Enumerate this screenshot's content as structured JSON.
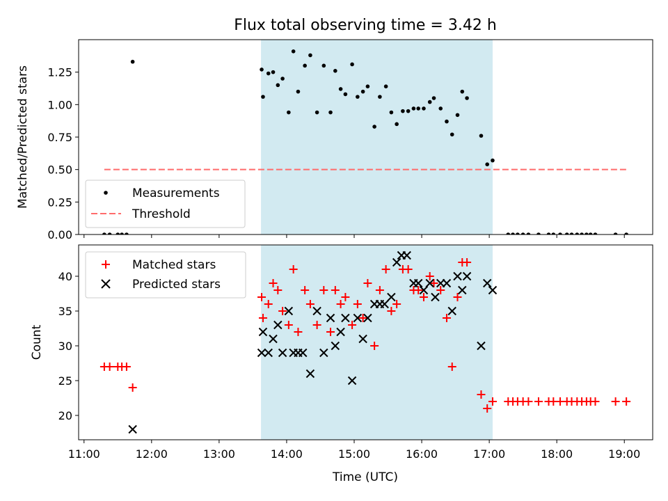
{
  "chart_data": [
    {
      "type": "scatter",
      "title": "Flux total observing time = 3.42 h",
      "xlabel": "",
      "ylabel": "Matched/Predicted stars",
      "xlim": [
        10.92,
        19.42
      ],
      "ylim": [
        0,
        1.5
      ],
      "x_ticks": [
        11,
        12,
        13,
        14,
        15,
        16,
        17,
        18,
        19
      ],
      "y_ticks": [
        0,
        0.25,
        0.5,
        0.75,
        1.0,
        1.25
      ],
      "y_tick_labels": [
        "0.00",
        "0.25",
        "0.50",
        "0.75",
        "1.00",
        "1.25"
      ],
      "shaded_span": [
        13.62,
        17.05
      ],
      "shade_color": "#add8e6",
      "threshold": {
        "name": "Threshold",
        "y": 0.5,
        "x_range": [
          11.3,
          19.05
        ],
        "color": "#ff6b6b"
      },
      "legend_position": "lower-left",
      "series": [
        {
          "name": "Measurements",
          "color": "#000000",
          "x": [
            11.3,
            11.38,
            11.5,
            11.56,
            11.63,
            11.72,
            13.63,
            13.65,
            13.73,
            13.8,
            13.87,
            13.94,
            14.03,
            14.1,
            14.17,
            14.27,
            14.35,
            14.45,
            14.55,
            14.65,
            14.72,
            14.8,
            14.87,
            14.97,
            15.05,
            15.13,
            15.2,
            15.3,
            15.38,
            15.47,
            15.55,
            15.63,
            15.72,
            15.8,
            15.88,
            15.95,
            16.03,
            16.12,
            16.18,
            16.28,
            16.37,
            16.45,
            16.53,
            16.6,
            16.67,
            16.88,
            16.97,
            17.05,
            17.28,
            17.35,
            17.42,
            17.5,
            17.58,
            17.73,
            17.88,
            17.95,
            18.05,
            18.15,
            18.22,
            18.3,
            18.37,
            18.44,
            18.5,
            18.57,
            18.87,
            19.03
          ],
          "y": [
            0,
            0,
            0,
            0,
            0,
            1.33,
            1.27,
            1.06,
            1.24,
            1.25,
            1.15,
            1.2,
            0.94,
            1.41,
            1.1,
            1.3,
            1.38,
            0.94,
            1.3,
            0.94,
            1.26,
            1.12,
            1.08,
            1.31,
            1.06,
            1.1,
            1.14,
            0.83,
            1.06,
            1.14,
            0.94,
            0.85,
            0.95,
            0.95,
            0.97,
            0.97,
            0.97,
            1.02,
            1.05,
            0.97,
            0.87,
            0.77,
            0.92,
            1.1,
            1.05,
            0.76,
            0.54,
            0.57,
            0,
            0,
            0,
            0,
            0,
            0,
            0,
            0,
            0,
            0,
            0,
            0,
            0,
            0,
            0,
            0,
            0,
            0
          ]
        }
      ]
    },
    {
      "type": "scatter",
      "title": "",
      "xlabel": "Time (UTC)",
      "ylabel": "Count",
      "xlim": [
        10.92,
        19.42
      ],
      "ylim": [
        16.5,
        44.5
      ],
      "x_ticks": [
        11,
        12,
        13,
        14,
        15,
        16,
        17,
        18,
        19
      ],
      "x_tick_labels": [
        "11:00",
        "12:00",
        "13:00",
        "14:00",
        "15:00",
        "16:00",
        "17:00",
        "18:00",
        "19:00"
      ],
      "y_ticks": [
        20,
        25,
        30,
        35,
        40
      ],
      "y_tick_labels": [
        "20",
        "25",
        "30",
        "35",
        "40"
      ],
      "shaded_span": [
        13.62,
        17.05
      ],
      "shade_color": "#add8e6",
      "legend_position": "upper-left",
      "series": [
        {
          "name": "Matched stars",
          "marker": "plus",
          "color": "#ff0000",
          "x": [
            11.3,
            11.38,
            11.5,
            11.56,
            11.63,
            11.72,
            13.63,
            13.65,
            13.73,
            13.8,
            13.87,
            13.94,
            14.03,
            14.1,
            14.17,
            14.27,
            14.35,
            14.45,
            14.55,
            14.65,
            14.72,
            14.8,
            14.87,
            14.97,
            15.05,
            15.13,
            15.2,
            15.3,
            15.38,
            15.47,
            15.55,
            15.63,
            15.72,
            15.8,
            15.88,
            15.95,
            16.03,
            16.12,
            16.18,
            16.28,
            16.37,
            16.45,
            16.53,
            16.6,
            16.67,
            16.88,
            16.97,
            17.05,
            17.28,
            17.35,
            17.42,
            17.5,
            17.58,
            17.73,
            17.88,
            17.95,
            18.05,
            18.15,
            18.22,
            18.3,
            18.37,
            18.44,
            18.5,
            18.57,
            18.87,
            19.03
          ],
          "y": [
            27,
            27,
            27,
            27,
            27,
            24,
            37,
            34,
            36,
            39,
            38,
            35,
            33,
            41,
            32,
            38,
            36,
            33,
            38,
            32,
            38,
            36,
            37,
            33,
            36,
            34,
            39,
            30,
            38,
            41,
            35,
            36,
            41,
            41,
            38,
            38,
            37,
            40,
            39,
            38,
            34,
            27,
            37,
            42,
            42,
            23,
            21,
            22,
            22,
            22,
            22,
            22,
            22,
            22,
            22,
            22,
            22,
            22,
            22,
            22,
            22,
            22,
            22,
            22,
            22,
            22
          ]
        },
        {
          "name": "Predicted stars",
          "marker": "x",
          "color": "#000000",
          "x": [
            11.72,
            13.63,
            13.65,
            13.73,
            13.8,
            13.87,
            13.94,
            14.03,
            14.1,
            14.17,
            14.24,
            14.35,
            14.45,
            14.55,
            14.65,
            14.72,
            14.8,
            14.87,
            14.97,
            15.05,
            15.13,
            15.2,
            15.3,
            15.38,
            15.45,
            15.55,
            15.63,
            15.7,
            15.78,
            15.88,
            15.95,
            16.03,
            16.12,
            16.2,
            16.28,
            16.37,
            16.45,
            16.53,
            16.6,
            16.67,
            16.88,
            16.97,
            17.05
          ],
          "y": [
            18,
            29,
            32,
            29,
            31,
            33,
            29,
            35,
            29,
            29,
            29,
            26,
            35,
            29,
            34,
            30,
            32,
            34,
            25,
            34,
            31,
            34,
            36,
            36,
            36,
            37,
            42,
            43,
            43,
            39,
            39,
            38,
            39,
            37,
            39,
            39,
            35,
            40,
            38,
            40,
            30,
            39,
            38
          ]
        }
      ]
    }
  ]
}
